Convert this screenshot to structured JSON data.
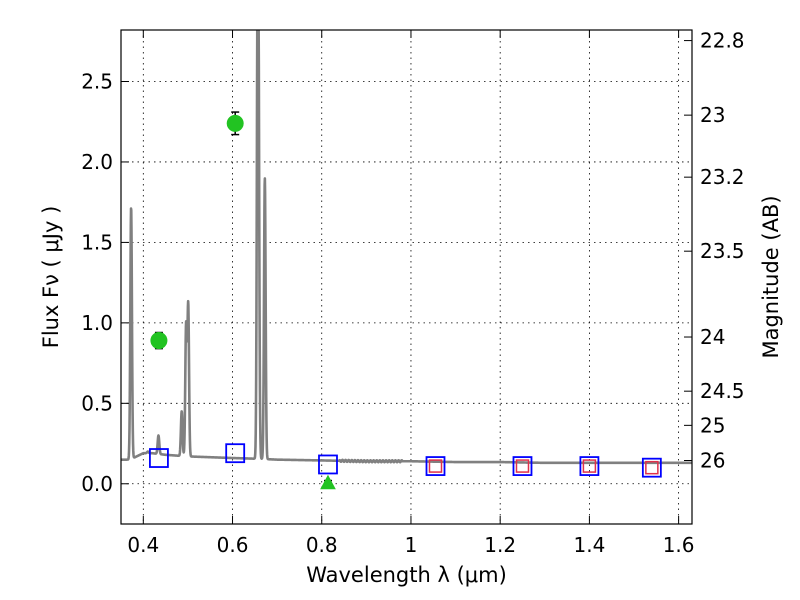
{
  "chart_data": {
    "type": "scatter",
    "xlabel": "Wavelength  λ (μm)",
    "ylabel": "Flux  Fν  ( μJy )",
    "y2label": "Magnitude (AB)",
    "xlim": [
      0.35,
      1.63
    ],
    "ylim": [
      -0.25,
      2.82
    ],
    "grid": true,
    "x_ticks": [
      0.4,
      0.6,
      0.8,
      1.0,
      1.2,
      1.4,
      1.6
    ],
    "x_tick_labels": [
      "0.4",
      "0.6",
      "0.8",
      "1",
      "1.2",
      "1.4",
      "1.6"
    ],
    "y_ticks": [
      0.0,
      0.5,
      1.0,
      1.5,
      2.0,
      2.5
    ],
    "y_tick_labels": [
      "0.0",
      "0.5",
      "1.0",
      "1.5",
      "2.0",
      "2.5"
    ],
    "mag_ticks": [
      22.8,
      23,
      23.2,
      23.5,
      24,
      24.5,
      25,
      26
    ],
    "mag_tick_labels": [
      "22.8",
      "23",
      "23.2",
      "23.5",
      "24",
      "24.5",
      "25",
      "26"
    ],
    "series": [
      {
        "kind": "observed-detections",
        "marker": "circle",
        "color": "#22c322",
        "points": [
          {
            "x": 0.435,
            "y": 0.89,
            "yerr": 0.05
          },
          {
            "x": 0.606,
            "y": 2.24,
            "yerr": 0.07
          }
        ]
      },
      {
        "kind": "observed-limits",
        "marker": "triangle",
        "color": "#22c322",
        "points": [
          {
            "x": 0.814,
            "y": 0.0,
            "yerr": 0.02
          }
        ]
      },
      {
        "kind": "model-photometry",
        "marker": "square",
        "color": "#0000ff",
        "points": [
          {
            "x": 0.435,
            "y": 0.16
          },
          {
            "x": 0.606,
            "y": 0.19
          },
          {
            "x": 0.814,
            "y": 0.12
          },
          {
            "x": 1.055,
            "y": 0.11
          },
          {
            "x": 1.25,
            "y": 0.11
          },
          {
            "x": 1.4,
            "y": 0.11
          },
          {
            "x": 1.54,
            "y": 0.1
          }
        ]
      },
      {
        "kind": "model-photometry-ir",
        "marker": "square",
        "color": "#e0304a",
        "points": [
          {
            "x": 1.055,
            "y": 0.11
          },
          {
            "x": 1.25,
            "y": 0.11
          },
          {
            "x": 1.4,
            "y": 0.11
          },
          {
            "x": 1.54,
            "y": 0.1
          }
        ]
      },
      {
        "kind": "model-spectrum",
        "color": "#808080",
        "continuum": [
          [
            0.35,
            0.15
          ],
          [
            0.37,
            0.15
          ],
          [
            0.385,
            0.17
          ],
          [
            0.4,
            0.19
          ],
          [
            0.42,
            0.19
          ],
          [
            0.45,
            0.18
          ],
          [
            0.5,
            0.17
          ],
          [
            0.55,
            0.165
          ],
          [
            0.6,
            0.16
          ],
          [
            0.66,
            0.155
          ],
          [
            0.7,
            0.15
          ],
          [
            0.8,
            0.145
          ],
          [
            0.9,
            0.14
          ],
          [
            1.0,
            0.14
          ],
          [
            1.1,
            0.135
          ],
          [
            1.2,
            0.135
          ],
          [
            1.3,
            0.13
          ],
          [
            1.4,
            0.13
          ],
          [
            1.5,
            0.13
          ],
          [
            1.63,
            0.13
          ]
        ],
        "lines": [
          {
            "x": 0.3727,
            "peak": 1.72
          },
          {
            "x": 0.4102,
            "peak": 0.2
          },
          {
            "x": 0.434,
            "peak": 0.3
          },
          {
            "x": 0.4861,
            "peak": 0.45
          },
          {
            "x": 0.4959,
            "peak": 0.98
          },
          {
            "x": 0.5007,
            "peak": 1.11
          },
          {
            "x": 0.6563,
            "peak": 2.82
          },
          {
            "x": 0.6584,
            "peak": 1.83
          },
          {
            "x": 0.6724,
            "peak": 1.9
          }
        ]
      }
    ]
  }
}
